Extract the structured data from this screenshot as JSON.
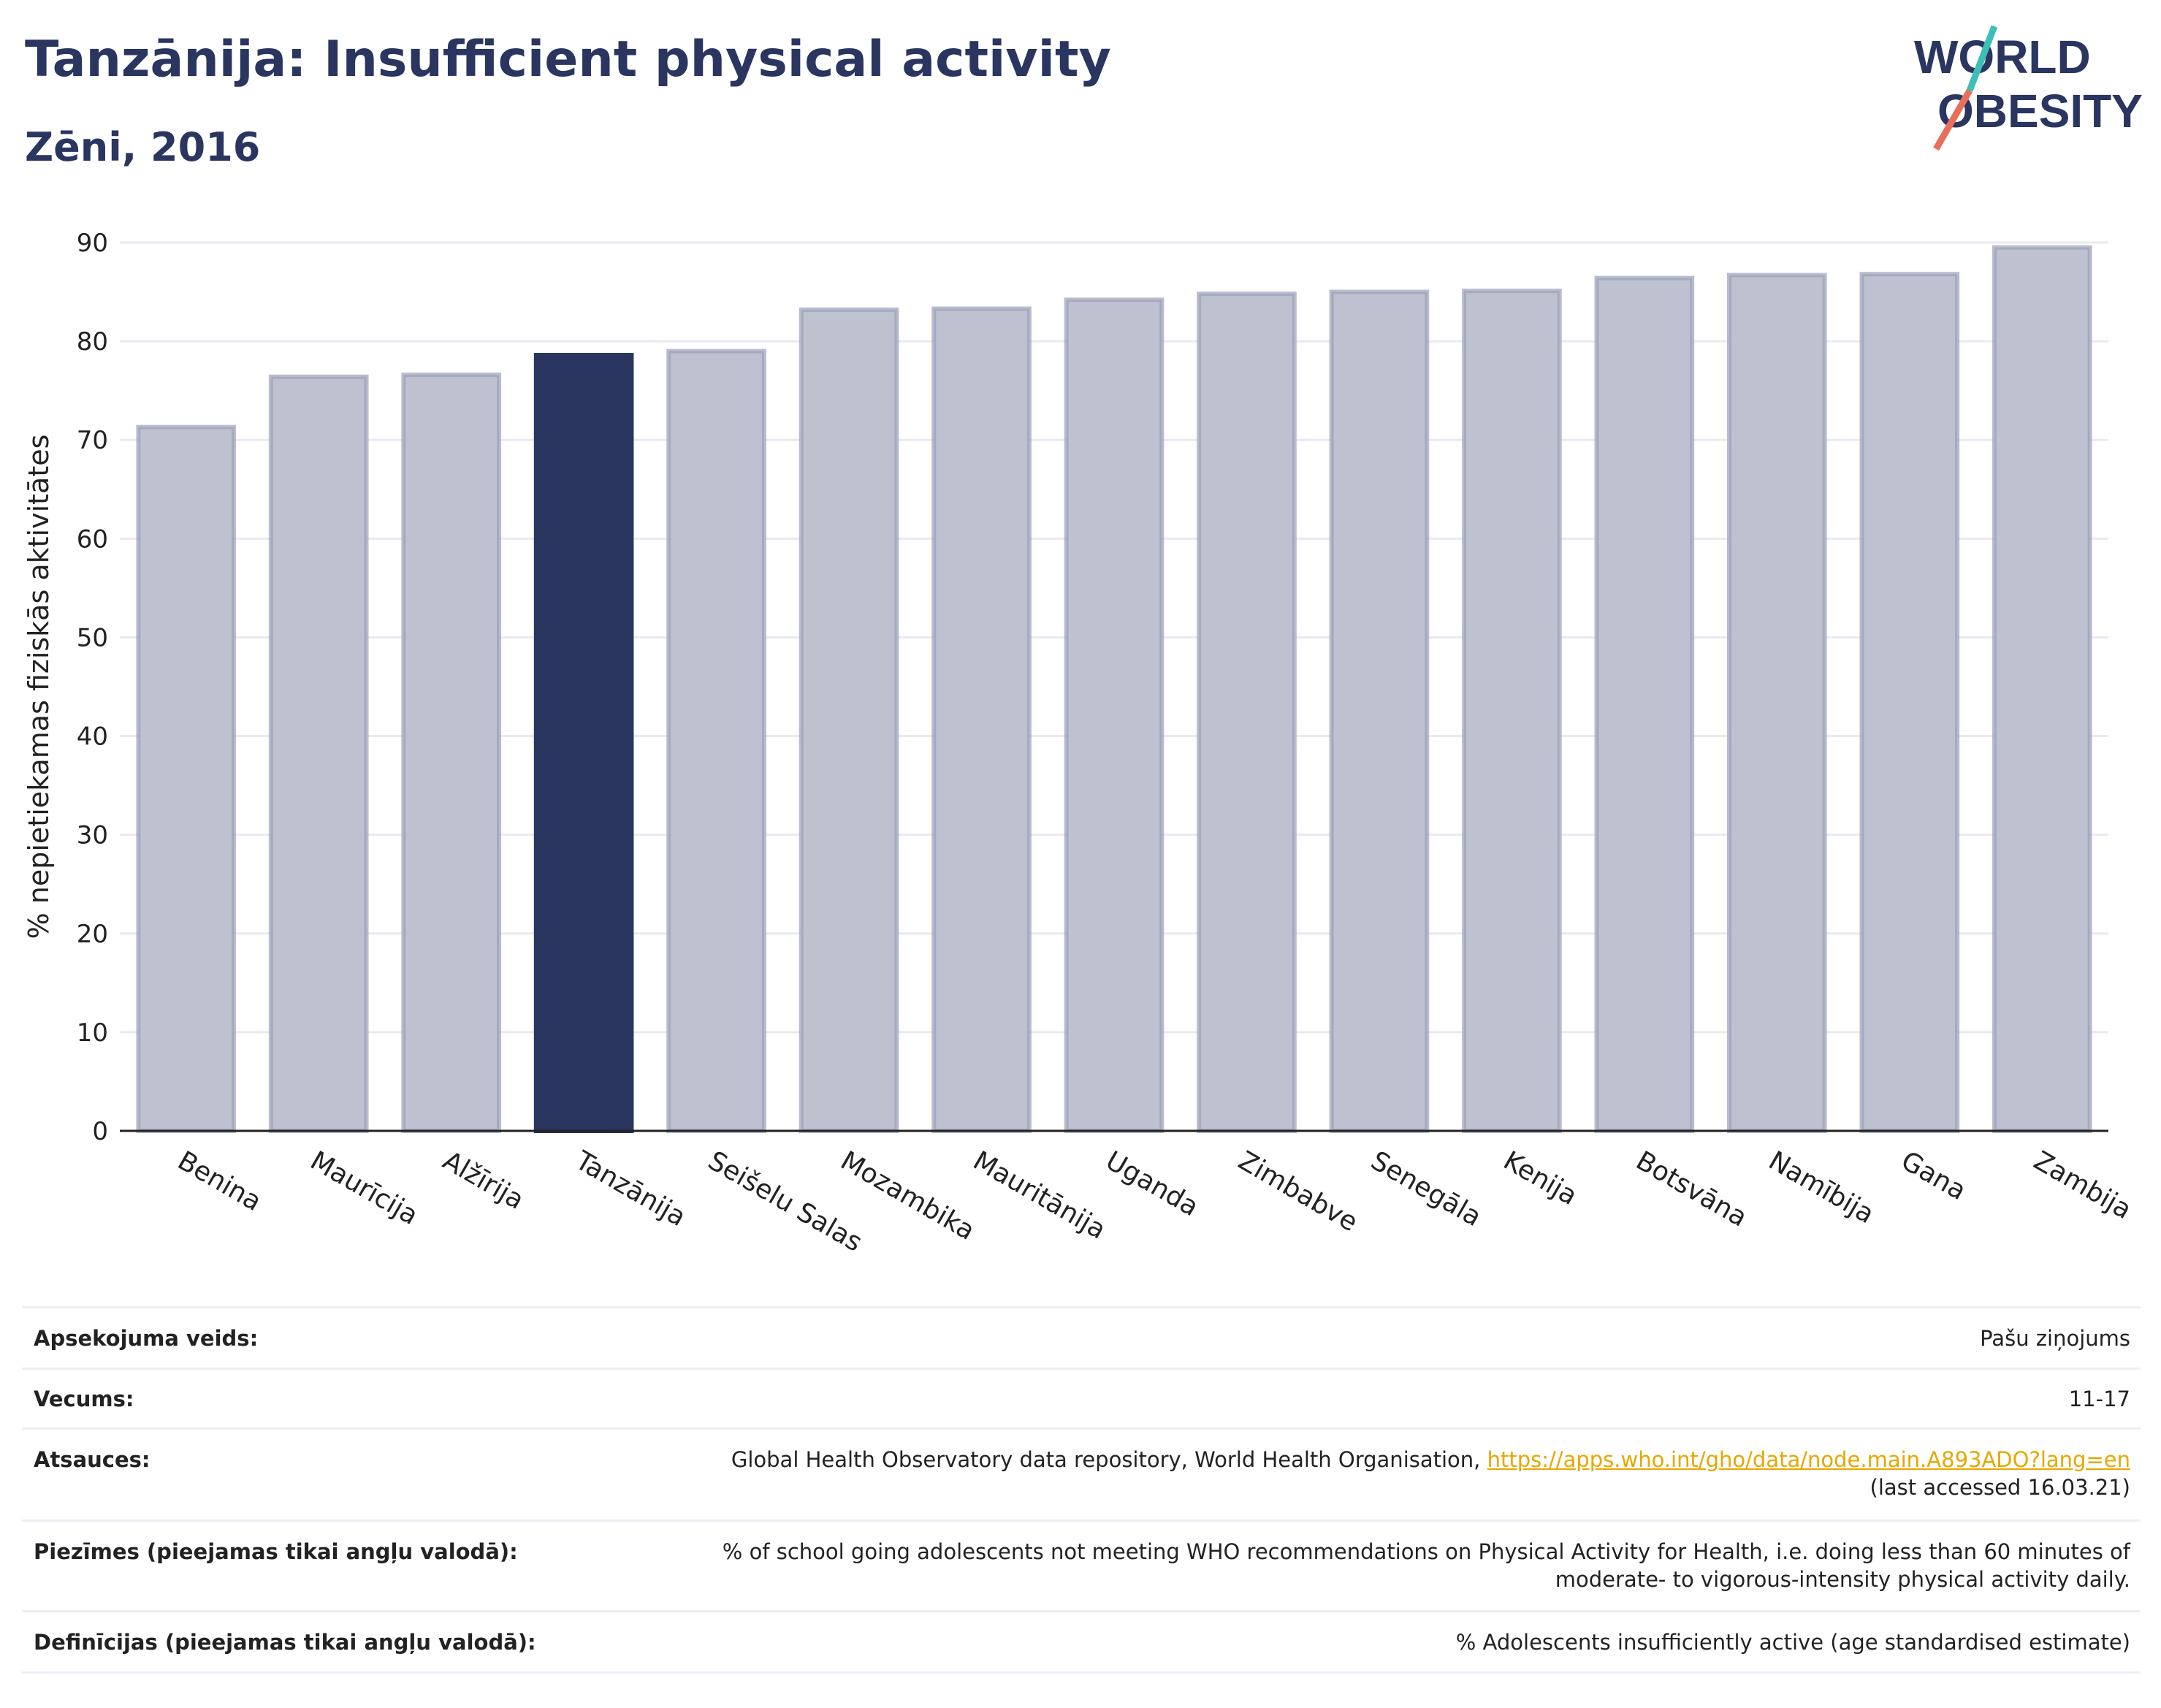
{
  "title": "Tanzānija: Insufficient physical activity",
  "subtitle": "Zēni, 2016",
  "logo": {
    "line1": "WORLD",
    "line2": "OBESITY"
  },
  "colors": {
    "highlight": "#2a3560",
    "bar": "#bec2d0",
    "bar_border": "#9aa0b8",
    "grid": "#e8eaf1",
    "link": "#e6a700"
  },
  "chart_data": {
    "type": "bar",
    "ylabel": "% nepietiekamas fiziskās aktivitātes",
    "xlabel": "",
    "ylim": [
      0,
      90
    ],
    "yticks": [
      0,
      10,
      20,
      30,
      40,
      50,
      60,
      70,
      80,
      90
    ],
    "grid": true,
    "highlight": "Tanzānija",
    "categories": [
      "Benina",
      "Maurīcija",
      "Alžīrija",
      "Tanzānija",
      "Seišelu Salas",
      "Mozambika",
      "Mauritānija",
      "Uganda",
      "Zimbabve",
      "Senegāla",
      "Kenija",
      "Botsvāna",
      "Namībija",
      "Gana",
      "Zambija"
    ],
    "values": [
      71.3,
      76.4,
      76.6,
      78.6,
      79.0,
      83.2,
      83.3,
      84.2,
      84.8,
      85.0,
      85.1,
      86.4,
      86.7,
      86.8,
      89.5
    ]
  },
  "info": {
    "survey_label": "Apsekojuma veids:",
    "survey_value": "Pašu ziņojums",
    "age_label": "Vecums:",
    "age_value": "11-17",
    "refs_label": "Atsauces:",
    "refs_text": "Global Health Observatory data repository, World Health Organisation, ",
    "refs_link": "https://apps.who.int/gho/data/node.main.A893ADO?lang=en",
    "refs_accessed": "(last accessed 16.03.21)",
    "notes_label": "Piezīmes (pieejamas tikai angļu valodā):",
    "notes_line1": "% of school going adolescents not meeting WHO recommendations on Physical Activity for Health, i.e. doing less than 60 minutes of",
    "notes_line2": "moderate- to vigorous-intensity physical activity daily.",
    "defs_label": "Definīcijas (pieejamas tikai angļu valodā):",
    "defs_value": "% Adolescents insufficiently active (age standardised estimate)"
  }
}
